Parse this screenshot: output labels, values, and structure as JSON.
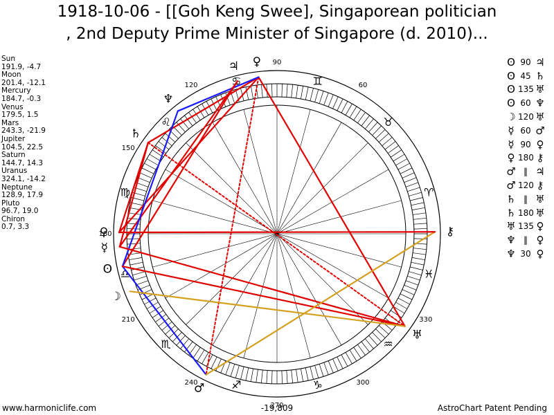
{
  "title": {
    "line1": "1918-10-06 - [[Goh Keng Swee], Singaporean politician",
    "line2": ", 2nd Deputy Prime Minister of Singapore (d. 2010)..."
  },
  "planets": [
    {
      "key": "sun",
      "name": "Sun",
      "coord": "191.9, -4.7",
      "lon": 191.9,
      "glyph": "ʘ",
      "color": "#000000"
    },
    {
      "key": "moon",
      "name": "Moon",
      "coord": "201.4, -12.1",
      "lon": 201.4,
      "glyph": "☽",
      "color": "#000000"
    },
    {
      "key": "mercury",
      "name": "Mercury",
      "coord": "184.7, -0.3",
      "lon": 184.7,
      "glyph": "☿",
      "color": "#000000"
    },
    {
      "key": "venus",
      "name": "Venus",
      "coord": "179.5, 1.5",
      "lon": 179.5,
      "glyph": "♀",
      "color": "#000000"
    },
    {
      "key": "mars",
      "name": "Mars",
      "coord": "243.3, -21.9",
      "lon": 243.3,
      "glyph": "♂",
      "color": "#000000"
    },
    {
      "key": "jupiter",
      "name": "Jupiter",
      "coord": "104.5, 22.5",
      "lon": 104.5,
      "glyph": "♃",
      "color": "#000000"
    },
    {
      "key": "saturn",
      "name": "Saturn",
      "coord": "144.7, 14.3",
      "lon": 144.7,
      "glyph": "♄",
      "color": "#000000"
    },
    {
      "key": "uranus",
      "name": "Uranus",
      "coord": "324.1, -14.2",
      "lon": 324.1,
      "glyph": "♅",
      "color": "#000000"
    },
    {
      "key": "neptune",
      "name": "Neptune",
      "coord": "128.9, 17.9",
      "lon": 128.9,
      "glyph": "♆",
      "color": "#000000"
    },
    {
      "key": "pluto",
      "name": "Pluto",
      "coord": "96.7, 19.0",
      "lon": 96.7,
      "glyph": "♀",
      "color": "#000000"
    },
    {
      "key": "chiron",
      "name": "Chiron",
      "coord": "0.7, 3.3",
      "lon": 0.7,
      "glyph": "⚷",
      "color": "#000000"
    }
  ],
  "degree_labels": [
    {
      "deg": 90,
      "text": "90"
    },
    {
      "deg": 60,
      "text": "60"
    },
    {
      "deg": 120,
      "text": "120"
    },
    {
      "deg": 150,
      "text": "150"
    },
    {
      "deg": 180,
      "text": "180"
    },
    {
      "deg": 210,
      "text": "210"
    },
    {
      "deg": 240,
      "text": "240"
    },
    {
      "deg": 270,
      "text": "270"
    },
    {
      "deg": 300,
      "text": "300"
    },
    {
      "deg": 330,
      "text": "330"
    }
  ],
  "zodiac": [
    {
      "deg": 15,
      "glyph": "♈"
    },
    {
      "deg": 45,
      "glyph": "♉"
    },
    {
      "deg": 75,
      "glyph": "♊"
    },
    {
      "deg": 105,
      "glyph": "♋"
    },
    {
      "deg": 135,
      "glyph": "♌"
    },
    {
      "deg": 165,
      "glyph": "♍"
    },
    {
      "deg": 195,
      "glyph": "♎"
    },
    {
      "deg": 225,
      "glyph": "♏"
    },
    {
      "deg": 255,
      "glyph": "♐"
    },
    {
      "deg": 285,
      "glyph": "♑"
    },
    {
      "deg": 315,
      "glyph": "♒"
    },
    {
      "deg": 345,
      "glyph": "♓"
    }
  ],
  "aspect_lines": [
    {
      "a": "pluto",
      "b": "uranus",
      "color": "#e00000",
      "style": "solid"
    },
    {
      "a": "pluto",
      "b": "saturn",
      "color": "#e00000",
      "style": "solid"
    },
    {
      "a": "pluto",
      "b": "venus",
      "color": "#e00000",
      "style": "solid"
    },
    {
      "a": "pluto",
      "b": "mars",
      "color": "#e00000",
      "style": "dotted"
    },
    {
      "a": "pluto",
      "b": "neptune",
      "color": "#1a1aff",
      "style": "solid"
    },
    {
      "a": "jupiter",
      "b": "sun",
      "color": "#e00000",
      "style": "solid"
    },
    {
      "a": "jupiter",
      "b": "mercury",
      "color": "#e00000",
      "style": "solid"
    },
    {
      "a": "saturn",
      "b": "mercury",
      "color": "#e00000",
      "style": "solid"
    },
    {
      "a": "saturn",
      "b": "uranus",
      "color": "#e00000",
      "style": "dotted"
    },
    {
      "a": "saturn",
      "b": "venus",
      "color": "#e00000",
      "style": "solid"
    },
    {
      "a": "neptune",
      "b": "sun",
      "color": "#1a1aff",
      "style": "solid"
    },
    {
      "a": "sun",
      "b": "mars",
      "color": "#1a1aff",
      "style": "solid"
    },
    {
      "a": "sun",
      "b": "uranus",
      "color": "#e00000",
      "style": "solid"
    },
    {
      "a": "mercury",
      "b": "uranus",
      "color": "#e00000",
      "style": "solid"
    },
    {
      "a": "moon",
      "b": "uranus",
      "color": "#d4a020",
      "style": "solid"
    },
    {
      "a": "mars",
      "b": "chiron",
      "color": "#d4a020",
      "style": "solid"
    },
    {
      "a": "venus",
      "b": "chiron",
      "color": "#e00000",
      "style": "solid"
    }
  ],
  "aspect_table": [
    {
      "p1": "ʘ",
      "deg": "90",
      "p2": "♃"
    },
    {
      "p1": "ʘ",
      "deg": "45",
      "p2": "♄"
    },
    {
      "p1": "ʘ",
      "deg": "135",
      "p2": "♅"
    },
    {
      "p1": "ʘ",
      "deg": "60",
      "p2": "♆"
    },
    {
      "p1": "☽",
      "deg": "120",
      "p2": "♅"
    },
    {
      "p1": "☿",
      "deg": "60",
      "p2": "♂"
    },
    {
      "p1": "☿",
      "deg": "90",
      "p2": "♀"
    },
    {
      "p1": "♀",
      "deg": "180",
      "p2": "⚷"
    },
    {
      "p1": "♂",
      "deg": "‖",
      "p2": "♃"
    },
    {
      "p1": "♂",
      "deg": "120",
      "p2": "⚷"
    },
    {
      "p1": "♄",
      "deg": "‖",
      "p2": "♅"
    },
    {
      "p1": "♄",
      "deg": "180",
      "p2": "♅"
    },
    {
      "p1": "♅",
      "deg": "135",
      "p2": "♀"
    },
    {
      "p1": "♆",
      "deg": "‖",
      "p2": "♀"
    },
    {
      "p1": "♆",
      "deg": "30",
      "p2": "♀"
    }
  ],
  "footer": {
    "left": "www.harmoniclife.com",
    "center": "-19,809",
    "right": "AstroChart Patent Pending"
  }
}
